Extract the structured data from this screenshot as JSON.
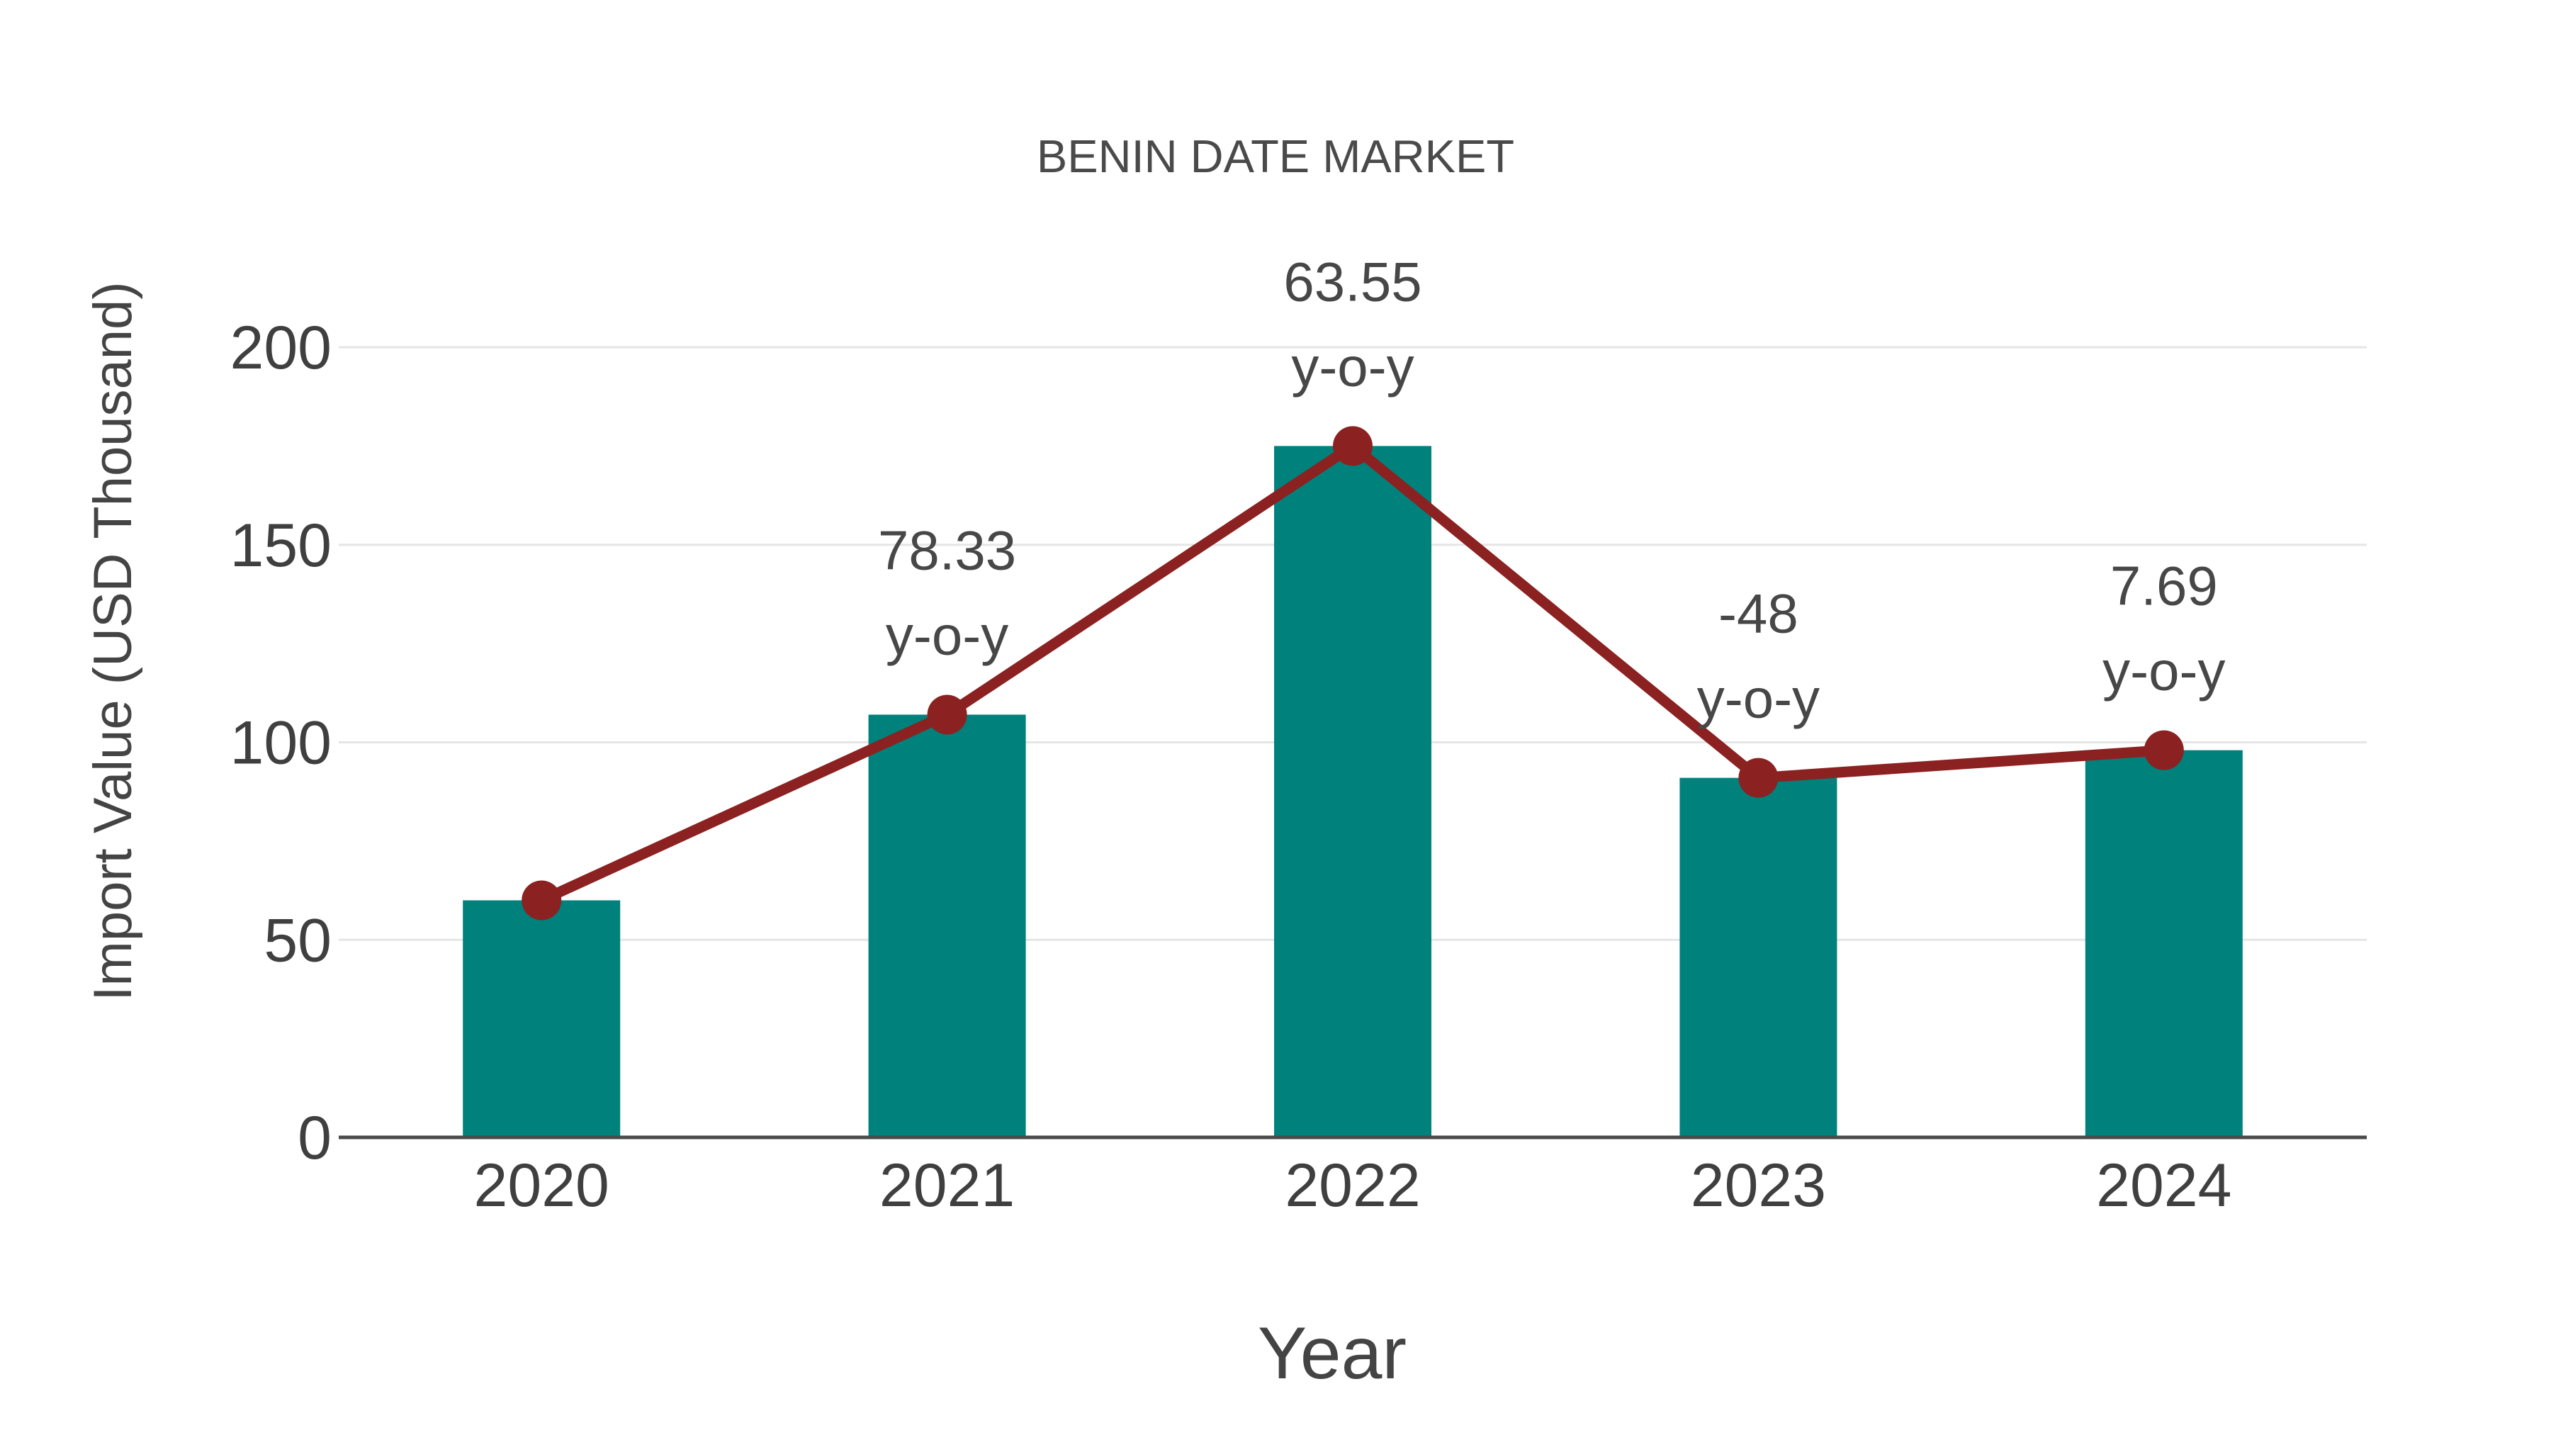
{
  "figure": {
    "background": "#ffffff"
  },
  "chart_data": {
    "type": "bar",
    "title": "BENIN DATE MARKET",
    "xlabel": "Year",
    "ylabel": "Import Value (USD Thousand)",
    "categories": [
      "2020",
      "2021",
      "2022",
      "2023",
      "2024"
    ],
    "series": [
      {
        "name": "import-value-bars",
        "type": "bar",
        "values": [
          60,
          107,
          175,
          91,
          98
        ]
      },
      {
        "name": "import-value-trend",
        "type": "line",
        "values": [
          60,
          107,
          175,
          91,
          98
        ]
      }
    ],
    "annotations": [
      {
        "category": "2021",
        "lines": [
          "78.33",
          "y-o-y"
        ]
      },
      {
        "category": "2022",
        "lines": [
          "63.55",
          "y-o-y"
        ]
      },
      {
        "category": "2023",
        "lines": [
          "-48",
          "y-o-y"
        ]
      },
      {
        "category": "2024",
        "lines": [
          "7.69",
          "y-o-y"
        ]
      }
    ],
    "yticks": [
      0,
      50,
      100,
      150,
      200
    ],
    "ylim": [
      0,
      200
    ],
    "grid": true,
    "legend_position": "none"
  },
  "colors": {
    "bar": "#00817c",
    "line": "#8b2121",
    "marker": "#8b2121",
    "gridline": "#e5e5e5",
    "axis_line": "#4a4a4a",
    "title_text": "#4a4a4a",
    "tick_text": "#3f3f3f",
    "annotation_text": "#474747",
    "axis_title_text": "#444444"
  }
}
